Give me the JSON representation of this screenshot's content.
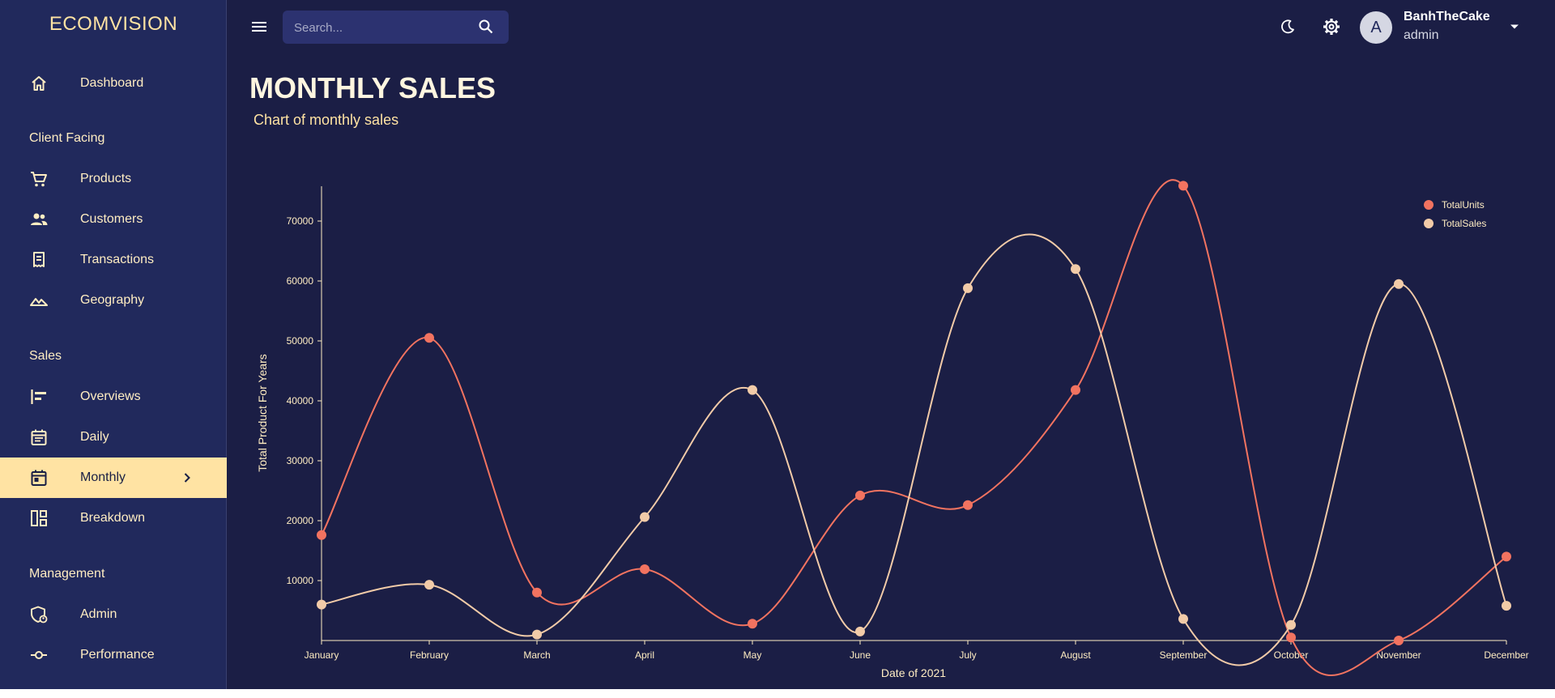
{
  "brand": "ECOMVISION",
  "sidebar": {
    "dashboard": "Dashboard",
    "sections": {
      "client_facing": "Client Facing",
      "sales": "Sales",
      "management": "Management"
    },
    "items": [
      {
        "label": "Products",
        "icon": "shopping-cart-icon"
      },
      {
        "label": "Customers",
        "icon": "groups-icon"
      },
      {
        "label": "Transactions",
        "icon": "receipt-icon"
      },
      {
        "label": "Geography",
        "icon": "geography-icon"
      },
      {
        "label": "Overviews",
        "icon": "overview-icon"
      },
      {
        "label": "Daily",
        "icon": "daily-calendar-icon"
      },
      {
        "label": "Monthly",
        "icon": "monthly-calendar-icon",
        "active": true
      },
      {
        "label": "Breakdown",
        "icon": "breakdown-icon"
      },
      {
        "label": "Admin",
        "icon": "admin-shield-icon"
      },
      {
        "label": "Performance",
        "icon": "performance-icon"
      }
    ]
  },
  "topbar": {
    "search_placeholder": "Search...",
    "user": {
      "avatar_initial": "A",
      "name": "BanhTheCake",
      "role": "admin"
    }
  },
  "page": {
    "title": "MONTHLY SALES",
    "subtitle": "Chart of monthly sales"
  },
  "colors": {
    "background": "#1b1e45",
    "sidebar": "#21295c",
    "accent": "#ffe3a3",
    "total_units": "#f27360",
    "total_sales": "#f2cba8"
  },
  "chart_data": {
    "type": "line",
    "xlabel": "Date of 2021",
    "ylabel": "Total Product For Years",
    "legend_position": "top-right",
    "ylim": [
      0,
      75000
    ],
    "yticks": [
      10000,
      20000,
      30000,
      40000,
      50000,
      60000,
      70000
    ],
    "categories": [
      "January",
      "February",
      "March",
      "April",
      "May",
      "June",
      "July",
      "August",
      "September",
      "October",
      "November",
      "December"
    ],
    "series": [
      {
        "name": "TotalUnits",
        "color": "#f27360",
        "values": [
          17600,
          50500,
          8000,
          11900,
          2800,
          24200,
          22600,
          41800,
          75900,
          500,
          0,
          14000
        ]
      },
      {
        "name": "TotalSales",
        "color": "#f2cba8",
        "values": [
          6000,
          9300,
          1000,
          20600,
          41800,
          1500,
          58800,
          62000,
          3600,
          2600,
          59500,
          5800
        ]
      }
    ]
  }
}
